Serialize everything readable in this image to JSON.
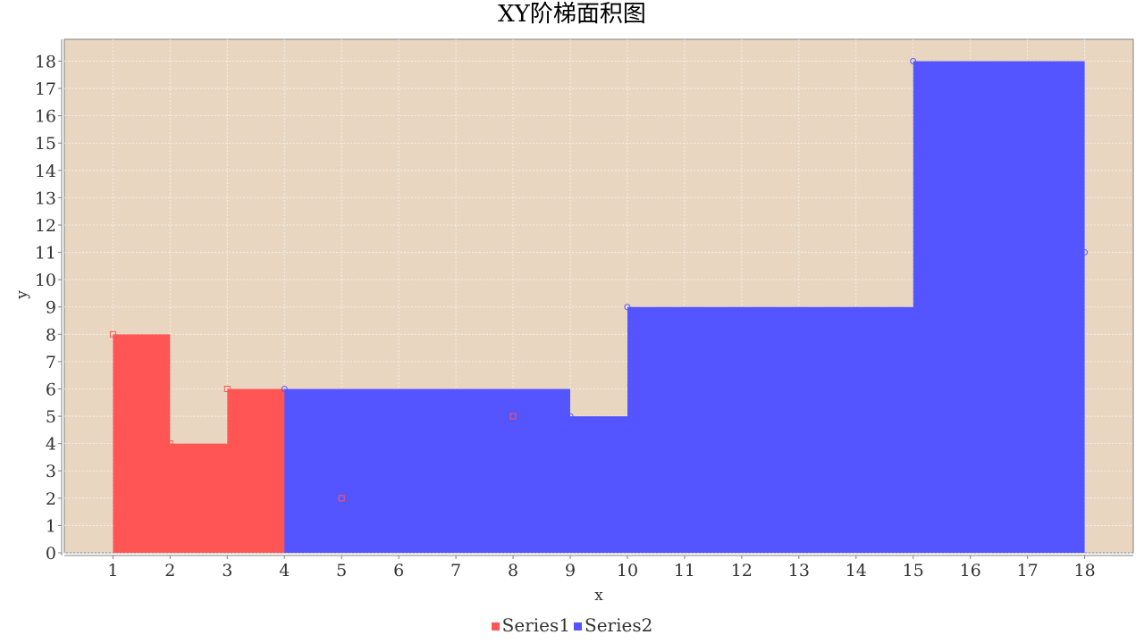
{
  "chart_data": {
    "type": "area",
    "subtype": "xy-step-area",
    "title": "XY阶梯面积图",
    "xlabel": "x",
    "ylabel": "y",
    "xlim": [
      0.15,
      18.85
    ],
    "ylim": [
      0,
      18.8
    ],
    "xticks": [
      1,
      2,
      3,
      4,
      5,
      6,
      7,
      8,
      9,
      10,
      11,
      12,
      13,
      14,
      15,
      16,
      17,
      18
    ],
    "yticks": [
      0,
      1,
      2,
      3,
      4,
      5,
      6,
      7,
      8,
      9,
      10,
      11,
      12,
      13,
      14,
      15,
      16,
      17,
      18
    ],
    "grid": true,
    "legend_position": "bottom",
    "background": "#e8d6c1",
    "series": [
      {
        "name": "Series1",
        "color": "#ff5555",
        "x": [
          1,
          2,
          3,
          5,
          8
        ],
        "y": [
          8,
          4,
          6,
          2,
          5
        ]
      },
      {
        "name": "Series2",
        "color": "#5555ff",
        "x": [
          4,
          9,
          10,
          15,
          18
        ],
        "y": [
          6,
          5,
          9,
          18,
          11
        ]
      }
    ]
  }
}
